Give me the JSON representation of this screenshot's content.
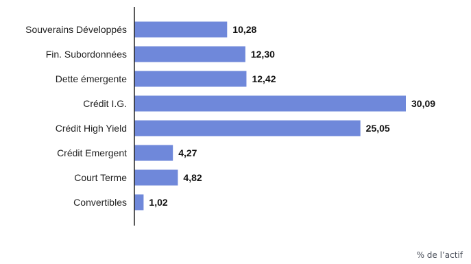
{
  "chart_data": {
    "type": "bar",
    "orientation": "horizontal",
    "categories": [
      "Souverains Développés",
      "Fin. Subordonnées",
      "Dette émergente",
      "Crédit I.G.",
      "Crédit High Yield",
      "Crédit Emergent",
      "Court Terme",
      "Convertibles"
    ],
    "values": [
      10.28,
      12.3,
      12.42,
      30.09,
      25.05,
      4.27,
      4.82,
      1.02
    ],
    "value_labels": [
      "10,28",
      "12,30",
      "12,42",
      "30,09",
      "25,05",
      "4,27",
      "4,82",
      "1,02"
    ],
    "bar_color": "#6f88da",
    "xlim": [
      0,
      30.09
    ],
    "grid": false,
    "legend": "none"
  },
  "footnote": "% de l’actif"
}
